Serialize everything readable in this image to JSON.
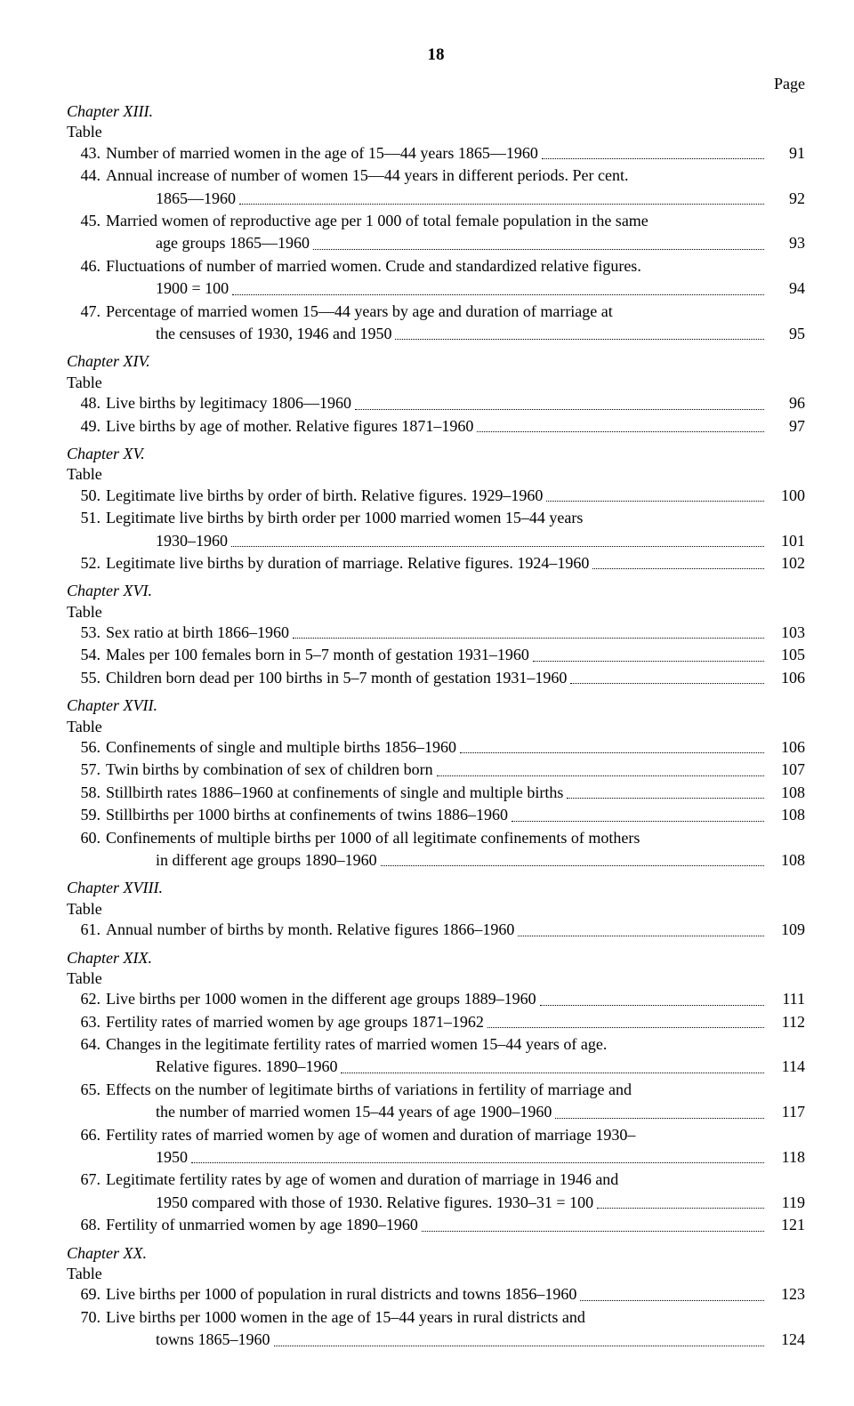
{
  "page_number_top": "18",
  "page_header_label": "Page",
  "chapters": [
    {
      "title": "Chapter XIII.",
      "table_label": "Table",
      "entries": [
        {
          "num": "43.",
          "lines": [
            "Number of married women in the age of 15—44 years 1865—1960"
          ],
          "page": "91"
        },
        {
          "num": "44.",
          "lines": [
            "Annual increase of number of women 15—44 years in different periods. Per cent.",
            "1865—1960"
          ],
          "page": "92"
        },
        {
          "num": "45.",
          "lines": [
            "Married women of reproductive age per 1 000 of total female population in the same",
            "age groups 1865—1960"
          ],
          "page": "93"
        },
        {
          "num": "46.",
          "lines": [
            "Fluctuations of number of married women. Crude and standardized relative figures.",
            "1900 = 100"
          ],
          "page": "94"
        },
        {
          "num": "47.",
          "lines": [
            "Percentage of married women 15—44 years by age and duration of marriage at",
            "the censuses of 1930, 1946 and 1950"
          ],
          "page": "95"
        }
      ]
    },
    {
      "title": "Chapter XIV.",
      "table_label": "Table",
      "entries": [
        {
          "num": "48.",
          "lines": [
            "Live births by legitimacy 1806—1960"
          ],
          "page": "96"
        },
        {
          "num": "49.",
          "lines": [
            "Live births by age of mother. Relative figures 1871–1960"
          ],
          "page": "97"
        }
      ]
    },
    {
      "title": "Chapter XV.",
      "table_label": "Table",
      "entries": [
        {
          "num": "50.",
          "lines": [
            "Legitimate live births by order of birth. Relative figures. 1929–1960"
          ],
          "page": "100"
        },
        {
          "num": "51.",
          "lines": [
            "Legitimate live births by birth order per 1000 married women 15–44 years",
            "1930–1960"
          ],
          "page": "101"
        },
        {
          "num": "52.",
          "lines": [
            "Legitimate live births by duration of marriage. Relative figures. 1924–1960"
          ],
          "page": "102"
        }
      ]
    },
    {
      "title": "Chapter XVI.",
      "table_label": "Table",
      "entries": [
        {
          "num": "53.",
          "lines": [
            "Sex ratio at birth 1866–1960"
          ],
          "page": "103"
        },
        {
          "num": "54.",
          "lines": [
            "Males per 100 females born in 5–7 month of gestation 1931–1960"
          ],
          "page": "105"
        },
        {
          "num": "55.",
          "lines": [
            "Children born dead per 100 births in 5–7 month of gestation 1931–1960"
          ],
          "page": "106"
        }
      ]
    },
    {
      "title": "Chapter XVII.",
      "table_label": "Table",
      "entries": [
        {
          "num": "56.",
          "lines": [
            "Confinements of single and multiple births 1856–1960"
          ],
          "page": "106"
        },
        {
          "num": "57.",
          "lines": [
            "Twin births by combination of sex of children born"
          ],
          "page": "107"
        },
        {
          "num": "58.",
          "lines": [
            "Stillbirth rates 1886–1960 at confinements of single and multiple births"
          ],
          "page": "108"
        },
        {
          "num": "59.",
          "lines": [
            "Stillbirths per 1000 births at confinements of twins 1886–1960"
          ],
          "page": "108"
        },
        {
          "num": "60.",
          "lines": [
            "Confinements of multiple births per 1000 of all legitimate confinements of mothers",
            "in different age groups 1890–1960"
          ],
          "page": "108"
        }
      ]
    },
    {
      "title": "Chapter XVIII.",
      "table_label": "Table",
      "entries": [
        {
          "num": "61.",
          "lines": [
            "Annual number of births by month. Relative figures 1866–1960"
          ],
          "page": "109"
        }
      ]
    },
    {
      "title": "Chapter XIX.",
      "table_label": "Table",
      "entries": [
        {
          "num": "62.",
          "lines": [
            "Live births per 1000 women in the different age groups 1889–1960"
          ],
          "page": "111"
        },
        {
          "num": "63.",
          "lines": [
            "Fertility rates of married women by age groups 1871–1962"
          ],
          "page": "112"
        },
        {
          "num": "64.",
          "lines": [
            "Changes in the legitimate fertility rates of married women 15–44 years of age.",
            "Relative figures. 1890–1960"
          ],
          "page": "114"
        },
        {
          "num": "65.",
          "lines": [
            "Effects on the number of legitimate births of variations in fertility of marriage and",
            "the number of married women 15–44 years of age 1900–1960"
          ],
          "page": "117"
        },
        {
          "num": "66.",
          "lines": [
            "Fertility rates of married women by age of women and duration of marriage 1930–",
            "1950"
          ],
          "page": "118"
        },
        {
          "num": "67.",
          "lines": [
            "Legitimate fertility rates by age of women and duration of marriage in 1946 and",
            "1950 compared with those of 1930. Relative figures. 1930–31 = 100"
          ],
          "page": "119"
        },
        {
          "num": "68.",
          "lines": [
            "Fertility of unmarried women by age 1890–1960"
          ],
          "page": "121"
        }
      ]
    },
    {
      "title": "Chapter XX.",
      "table_label": "Table",
      "entries": [
        {
          "num": "69.",
          "lines": [
            "Live births per 1000 of population in rural districts and towns 1856–1960"
          ],
          "page": "123"
        },
        {
          "num": "70.",
          "lines": [
            "Live births per 1000 women in the age of 15–44 years in rural districts and",
            "towns 1865–1960"
          ],
          "page": "124"
        }
      ]
    }
  ]
}
